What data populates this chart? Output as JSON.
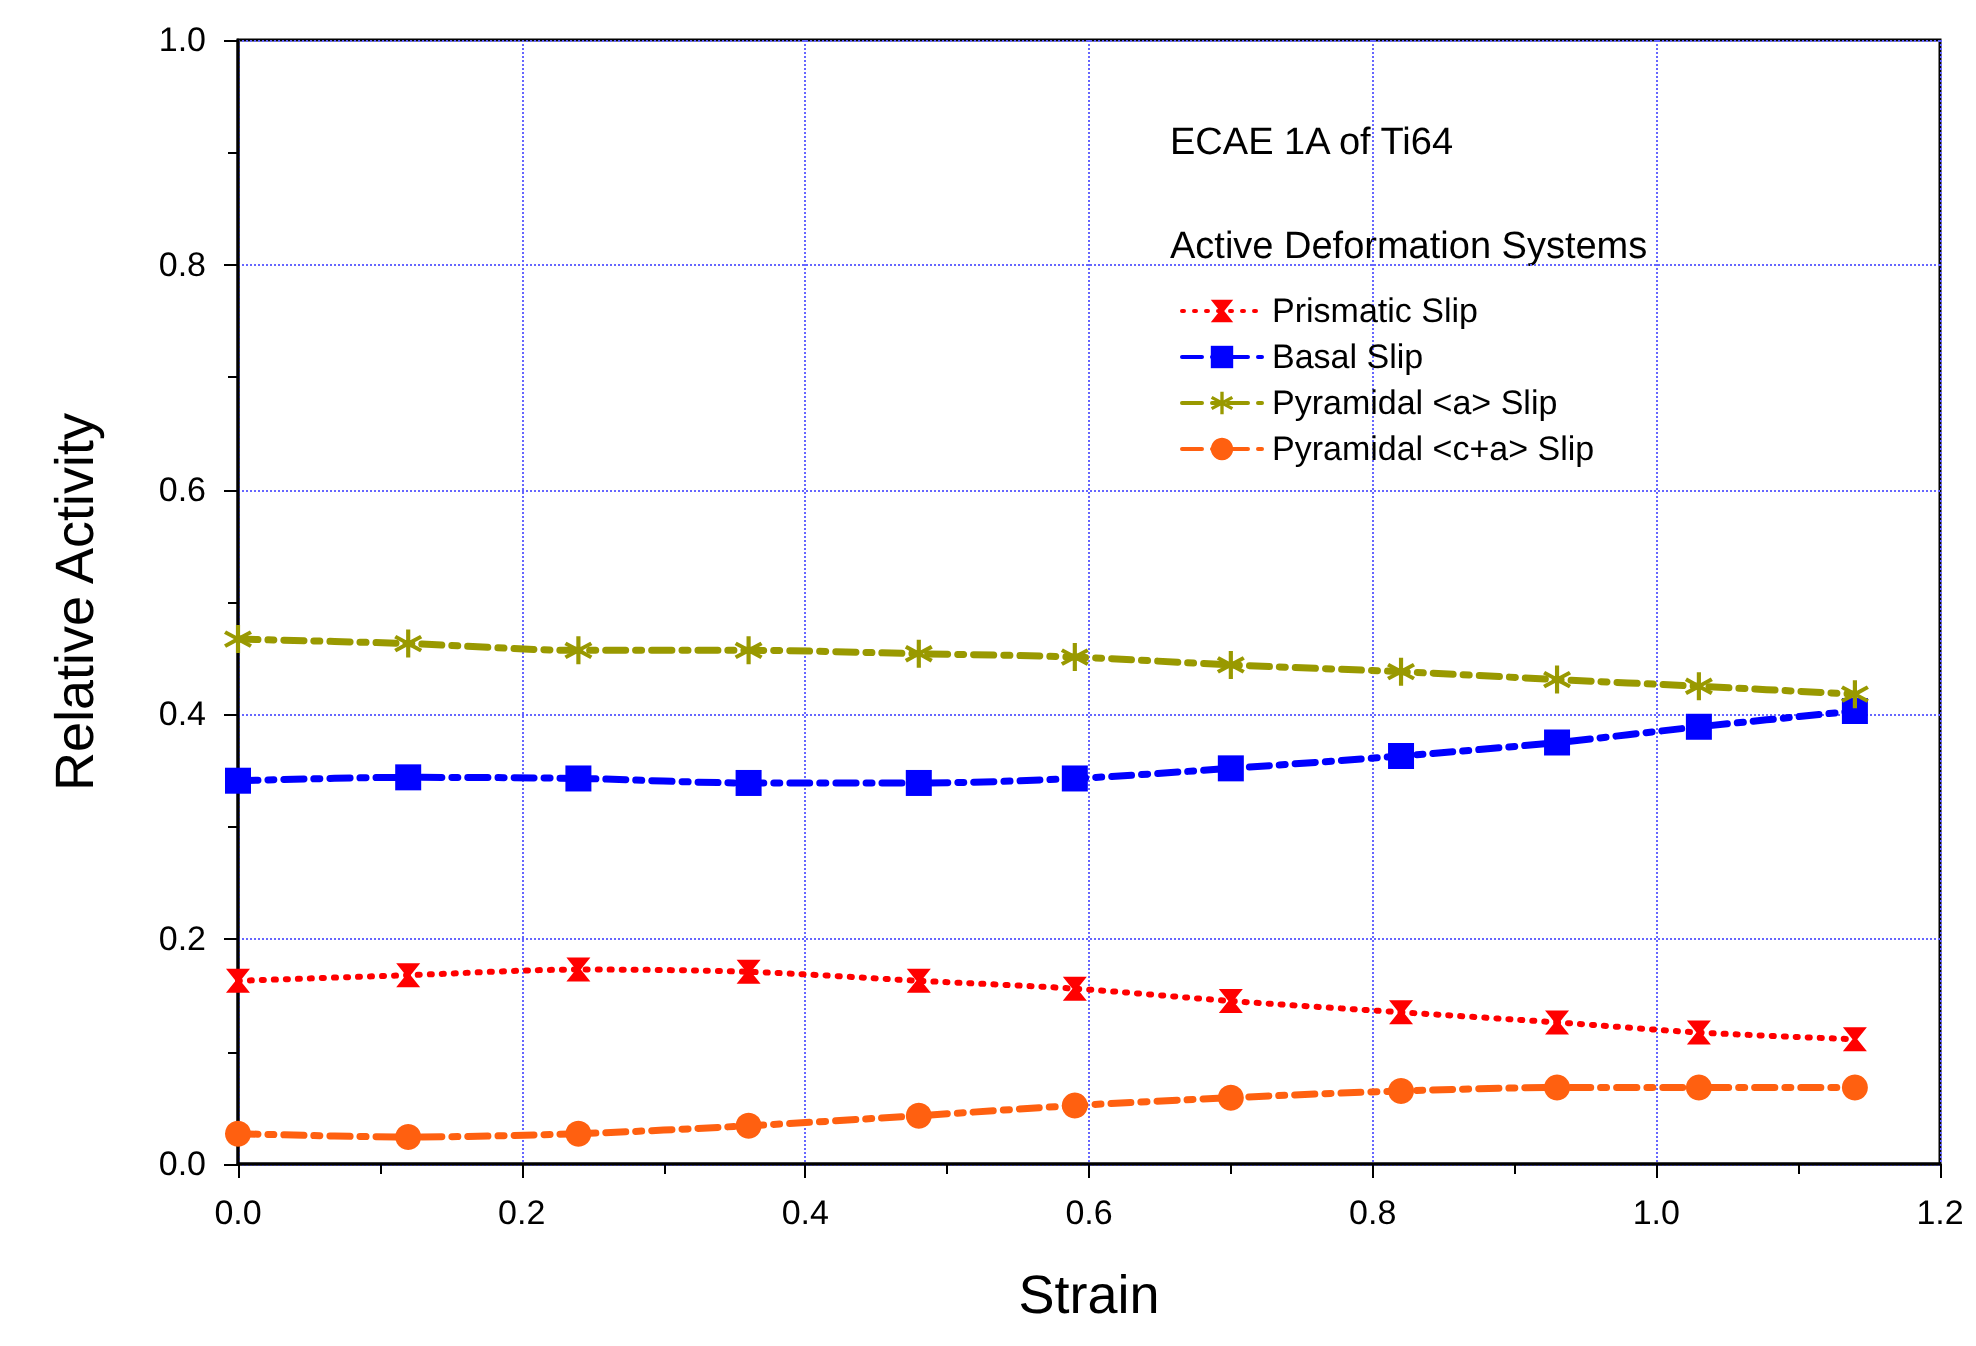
{
  "chart_data": {
    "type": "line",
    "xlabel": "Strain",
    "ylabel": "Relative Activity",
    "legend_title": "Active Deformation Systems",
    "annotations": [
      "ECAE 1A of Ti64"
    ],
    "x": [
      0,
      0.12,
      0.24,
      0.36,
      0.48,
      0.59,
      0.7,
      0.82,
      0.93,
      1.03,
      1.14
    ],
    "xlim": [
      0,
      1.2
    ],
    "xticks": [
      {
        "value": 0,
        "label": "0.0"
      },
      {
        "value": 0.2,
        "label": "0.2"
      },
      {
        "value": 0.4,
        "label": "0.4"
      },
      {
        "value": 0.6,
        "label": "0.6"
      },
      {
        "value": 0.8,
        "label": "0.8"
      },
      {
        "value": 1.0,
        "label": "1.0"
      },
      {
        "value": 1.2,
        "label": "1.2"
      }
    ],
    "ylim": [
      0,
      1
    ],
    "yticks": [
      {
        "value": 0,
        "label": "0.0"
      },
      0.2,
      0.4,
      0.6,
      0.8,
      {
        "value": 1,
        "label": "1.0"
      }
    ],
    "grid": true,
    "legend": "top right",
    "series": [
      {
        "name": "Prismatic Slip",
        "color": "#ff0000",
        "marker": "triangle",
        "line_style": "dotted",
        "values": [
          0.163,
          0.168,
          0.173,
          0.171,
          0.163,
          0.156,
          0.145,
          0.135,
          0.126,
          0.117,
          0.111
        ]
      },
      {
        "name": "Basal Slip",
        "color": "#0000ff",
        "marker": "square",
        "line_style": "dashed",
        "values": [
          0.341,
          0.344,
          0.343,
          0.339,
          0.339,
          0.343,
          0.352,
          0.363,
          0.375,
          0.389,
          0.403
        ]
      },
      {
        "name": "Pyramidal <a> Slip",
        "color": "#999900",
        "marker": "star",
        "line_style": "dashed",
        "values": [
          0.467,
          0.463,
          0.457,
          0.457,
          0.454,
          0.451,
          0.444,
          0.438,
          0.431,
          0.425,
          0.418
        ]
      },
      {
        "name": "Pyramidal <c+a> Slip",
        "color": "#ff6010",
        "marker": "circle",
        "line_style": "dashed",
        "values": [
          0.027,
          0.024,
          0.027,
          0.034,
          0.043,
          0.052,
          0.059,
          0.065,
          0.068,
          0.068,
          0.068
        ]
      }
    ]
  }
}
